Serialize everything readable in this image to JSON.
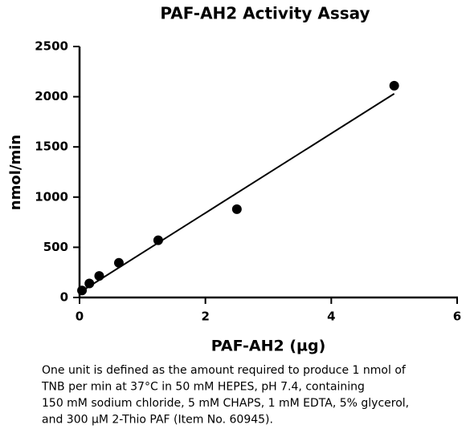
{
  "chart_data": {
    "type": "scatter",
    "title": "PAF-AH2 Activity Assay",
    "x_label": "PAF-AH2 (µg)",
    "y_label": "nmol/min",
    "x": [
      0.039,
      0.156,
      0.3125,
      0.625,
      1.25,
      2.5,
      5
    ],
    "values": [
      70,
      140,
      215,
      345,
      570,
      880,
      2110
    ],
    "color": "#000000",
    "trendline": {
      "x": [
        0,
        5
      ],
      "values": [
        50,
        2030
      ]
    },
    "xlim": [
      0,
      6
    ],
    "xticks": [
      0,
      2,
      4,
      6
    ],
    "ylim": [
      0,
      2500
    ],
    "yticks": [
      0,
      500,
      1000,
      1500,
      2000,
      2500
    ],
    "grid": false,
    "caption": [
      "One unit is defined as the amount required to produce 1 nmol of",
      "TNB per min at 37°C in 50 mM HEPES, pH 7.4, containing",
      "150 mM sodium chloride, 5 mM CHAPS, 1 mM EDTA, 5% glycerol,",
      "and 300 µM 2-Thio PAF (Item No. 60945)."
    ]
  }
}
